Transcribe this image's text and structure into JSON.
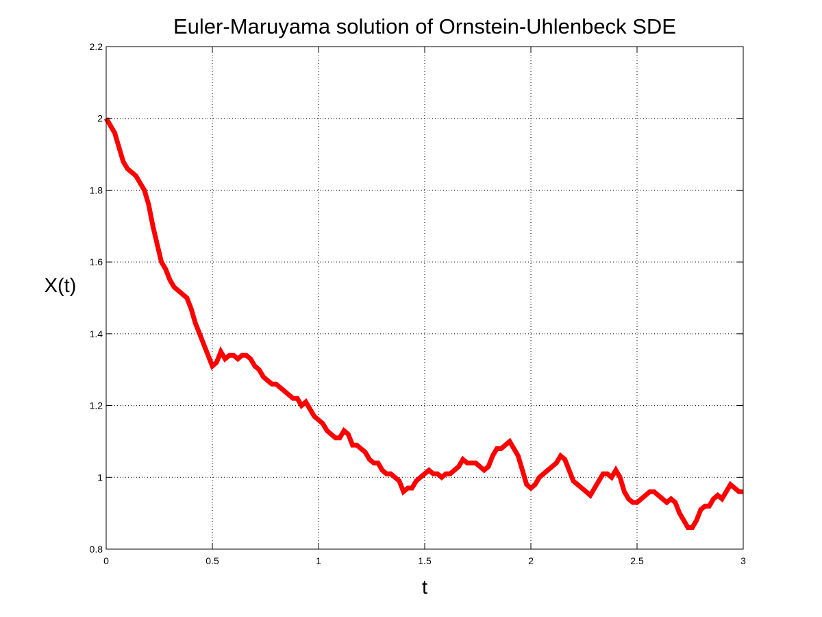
{
  "chart_data": {
    "type": "line",
    "title": "Euler-Maruyama solution of Ornstein-Uhlenbeck SDE",
    "xlabel": "t",
    "ylabel": "X(t)",
    "xlim": [
      0,
      3
    ],
    "ylim": [
      0.8,
      2.2
    ],
    "xticks": [
      0,
      0.5,
      1,
      1.5,
      2,
      2.5,
      3
    ],
    "xtick_labels": [
      "0",
      "0.5",
      "1",
      "1.5",
      "2",
      "2.5",
      "3"
    ],
    "yticks": [
      0.8,
      1,
      1.2,
      1.4,
      1.6,
      1.8,
      2,
      2.2
    ],
    "ytick_labels": [
      "0.8",
      "1",
      "1.2",
      "1.4",
      "1.6",
      "1.8",
      "2",
      "2.2"
    ],
    "grid": true,
    "series": [
      {
        "color": "#ff0000",
        "x": [
          0,
          0.02,
          0.04,
          0.06,
          0.08,
          0.1,
          0.12,
          0.14,
          0.16,
          0.18,
          0.2,
          0.22,
          0.24,
          0.26,
          0.28,
          0.3,
          0.32,
          0.34,
          0.36,
          0.38,
          0.4,
          0.42,
          0.44,
          0.46,
          0.48,
          0.5,
          0.52,
          0.54,
          0.56,
          0.58,
          0.6,
          0.62,
          0.64,
          0.66,
          0.68,
          0.7,
          0.72,
          0.74,
          0.76,
          0.78,
          0.8,
          0.82,
          0.84,
          0.86,
          0.88,
          0.9,
          0.92,
          0.94,
          0.96,
          0.98,
          1.0,
          1.02,
          1.04,
          1.06,
          1.08,
          1.1,
          1.12,
          1.14,
          1.16,
          1.18,
          1.2,
          1.22,
          1.24,
          1.26,
          1.28,
          1.3,
          1.32,
          1.34,
          1.36,
          1.38,
          1.4,
          1.42,
          1.44,
          1.46,
          1.48,
          1.5,
          1.52,
          1.54,
          1.56,
          1.58,
          1.6,
          1.62,
          1.64,
          1.66,
          1.68,
          1.7,
          1.72,
          1.74,
          1.76,
          1.78,
          1.8,
          1.82,
          1.84,
          1.86,
          1.88,
          1.9,
          1.92,
          1.94,
          1.96,
          1.98,
          2.0,
          2.02,
          2.04,
          2.06,
          2.08,
          2.1,
          2.12,
          2.14,
          2.16,
          2.18,
          2.2,
          2.22,
          2.24,
          2.26,
          2.28,
          2.3,
          2.32,
          2.34,
          2.36,
          2.38,
          2.4,
          2.42,
          2.44,
          2.46,
          2.48,
          2.5,
          2.52,
          2.54,
          2.56,
          2.58,
          2.6,
          2.62,
          2.64,
          2.66,
          2.68,
          2.7,
          2.72,
          2.74,
          2.76,
          2.78,
          2.8,
          2.82,
          2.84,
          2.86,
          2.88,
          2.9,
          2.92,
          2.94,
          2.96,
          2.98,
          3.0
        ],
        "y": [
          2.0,
          1.98,
          1.96,
          1.92,
          1.88,
          1.86,
          1.85,
          1.84,
          1.82,
          1.8,
          1.76,
          1.7,
          1.65,
          1.6,
          1.58,
          1.55,
          1.53,
          1.52,
          1.51,
          1.5,
          1.47,
          1.43,
          1.4,
          1.37,
          1.34,
          1.31,
          1.32,
          1.35,
          1.33,
          1.34,
          1.34,
          1.33,
          1.34,
          1.34,
          1.33,
          1.31,
          1.3,
          1.28,
          1.27,
          1.26,
          1.26,
          1.25,
          1.24,
          1.23,
          1.22,
          1.22,
          1.2,
          1.21,
          1.19,
          1.17,
          1.16,
          1.15,
          1.13,
          1.12,
          1.11,
          1.11,
          1.13,
          1.12,
          1.09,
          1.09,
          1.08,
          1.07,
          1.05,
          1.04,
          1.04,
          1.02,
          1.01,
          1.01,
          1.0,
          0.99,
          0.96,
          0.97,
          0.97,
          0.99,
          1.0,
          1.01,
          1.02,
          1.01,
          1.01,
          1.0,
          1.01,
          1.01,
          1.02,
          1.03,
          1.05,
          1.04,
          1.04,
          1.04,
          1.03,
          1.02,
          1.03,
          1.06,
          1.08,
          1.08,
          1.09,
          1.1,
          1.08,
          1.06,
          1.02,
          0.98,
          0.97,
          0.98,
          1.0,
          1.01,
          1.02,
          1.03,
          1.04,
          1.06,
          1.05,
          1.02,
          0.99,
          0.98,
          0.97,
          0.96,
          0.95,
          0.97,
          0.99,
          1.01,
          1.01,
          1.0,
          1.02,
          1.0,
          0.96,
          0.94,
          0.93,
          0.93,
          0.94,
          0.95,
          0.96,
          0.96,
          0.95,
          0.94,
          0.93,
          0.94,
          0.93,
          0.9,
          0.88,
          0.86,
          0.86,
          0.88,
          0.91,
          0.92,
          0.92,
          0.94,
          0.95,
          0.94,
          0.96,
          0.98,
          0.97,
          0.96,
          0.96
        ]
      }
    ]
  }
}
